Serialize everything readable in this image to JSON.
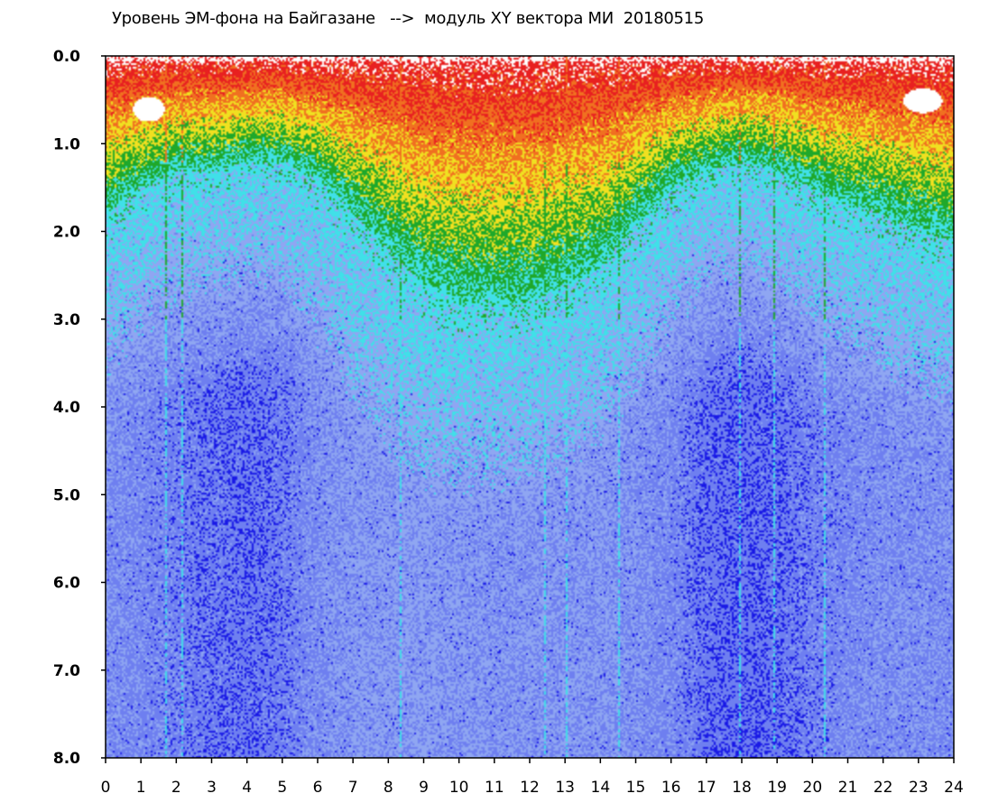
{
  "chart_data": {
    "type": "heatmap",
    "title": "Уровень ЭМ-фона на Байгазане   -->  модуль XY вектора МИ  20180515",
    "x_ticks": [
      "0",
      "1",
      "2",
      "3",
      "4",
      "5",
      "6",
      "7",
      "8",
      "9",
      "10",
      "11",
      "12",
      "13",
      "14",
      "15",
      "16",
      "17",
      "18",
      "19",
      "20",
      "21",
      "22",
      "23",
      "24"
    ],
    "y_ticks": [
      "0.0",
      "1.0",
      "2.0",
      "3.0",
      "4.0",
      "5.0",
      "6.0",
      "7.0",
      "8.0"
    ],
    "xlim": [
      0,
      24
    ],
    "ylim": [
      0,
      8
    ],
    "y_inverted": true,
    "grid": false,
    "colormap": [
      "#1a1ae6",
      "#6e7ff0",
      "#8fa6f2",
      "#40e0e8",
      "#1fa82a",
      "#f0e020",
      "#f07020",
      "#e82020",
      "#ffffff"
    ],
    "intensity_profile": {
      "x": [
        0,
        1,
        2,
        3,
        4,
        5,
        6,
        7,
        8,
        9,
        10,
        11,
        12,
        13,
        14,
        15,
        16,
        17,
        18,
        19,
        20,
        21,
        22,
        23,
        24
      ],
      "high_band_depth": [
        1.8,
        1.5,
        1.3,
        1.3,
        1.2,
        1.2,
        1.4,
        1.8,
        2.2,
        2.6,
        2.8,
        2.8,
        2.8,
        2.6,
        2.4,
        1.9,
        1.5,
        1.3,
        1.2,
        1.3,
        1.5,
        1.7,
        1.8,
        2.0,
        2.1
      ],
      "low_level_strength": [
        0.5,
        0.6,
        0.7,
        0.8,
        0.85,
        0.75,
        0.5,
        0.35,
        0.3,
        0.3,
        0.35,
        0.4,
        0.4,
        0.4,
        0.4,
        0.45,
        0.6,
        0.85,
        0.9,
        0.85,
        0.7,
        0.6,
        0.5,
        0.5,
        0.5
      ]
    }
  }
}
